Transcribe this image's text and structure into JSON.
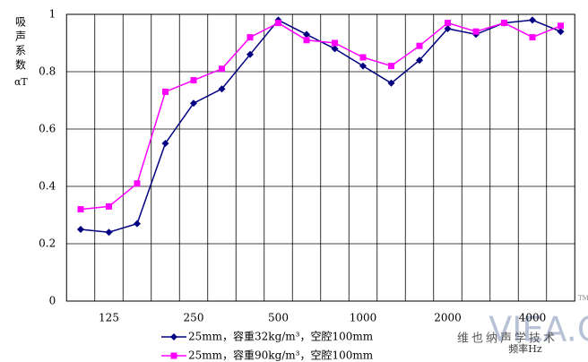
{
  "chart_data": {
    "type": "line",
    "ylabel": "吸声系数",
    "ylabel_symbol": "αT",
    "xlabel": "频率Hz",
    "watermark": "VIEA.CN",
    "watermark_sub": "维也纳声学技术",
    "watermark_mark": "TM",
    "categories": [
      null,
      "125",
      null,
      null,
      "250",
      null,
      null,
      "500",
      null,
      null,
      "1000",
      null,
      null,
      "2000",
      null,
      null,
      "4000",
      null
    ],
    "series": [
      {
        "name": "25mm，容重32kg/m³，空腔100mm",
        "color": "#000080",
        "marker": "diamond",
        "values": [
          0.25,
          0.24,
          0.27,
          0.55,
          0.69,
          0.74,
          0.86,
          0.98,
          0.93,
          0.88,
          0.82,
          0.76,
          0.84,
          0.95,
          0.93,
          0.97,
          0.98,
          0.94
        ]
      },
      {
        "name": "25mm，容重90kg/m³，空腔100mm",
        "color": "#ff00ff",
        "marker": "square",
        "values": [
          0.32,
          0.33,
          0.41,
          0.73,
          0.77,
          0.81,
          0.92,
          0.97,
          0.91,
          0.9,
          0.85,
          0.82,
          0.89,
          0.97,
          0.94,
          0.97,
          0.92,
          0.96
        ]
      }
    ],
    "ylim": [
      0,
      1
    ],
    "yticks": [
      0,
      0.2,
      0.4,
      0.6,
      0.8,
      1
    ],
    "grid": true
  }
}
